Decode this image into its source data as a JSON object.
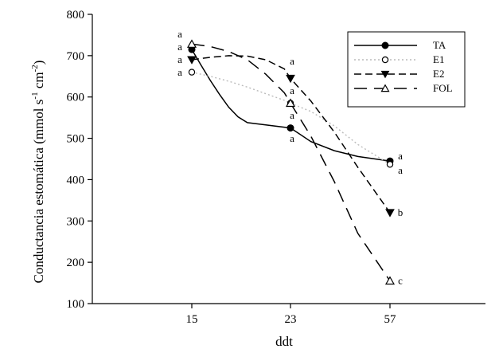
{
  "chart_data": {
    "type": "line",
    "categories": [
      "15",
      "23",
      "57"
    ],
    "xlabel": "ddt",
    "ylabel": "Conductancia estomática (mmol s",
    "ylabel_sup1": "-1",
    "ylabel_mid": " cm",
    "ylabel_sup2": "-2",
    "ylabel_end": ")",
    "ylim": [
      100,
      800
    ],
    "yticks": [
      100,
      200,
      300,
      400,
      500,
      600,
      700,
      800
    ],
    "grid": false,
    "legend_position": "top-right",
    "series": [
      {
        "name": "TA",
        "values": [
          715,
          525,
          445
        ],
        "marker": "filled-circle",
        "line_style": "solid",
        "color": "#000000",
        "significance": [
          "a",
          "a",
          "a"
        ],
        "curve": [
          [
            15,
            715
          ],
          [
            15.75,
            677
          ],
          [
            16.5,
            640
          ],
          [
            17.25,
            606
          ],
          [
            18,
            575
          ],
          [
            18.75,
            552
          ],
          [
            19.5,
            538
          ],
          [
            23,
            525
          ],
          [
            30,
            492
          ],
          [
            38,
            470
          ],
          [
            46,
            456
          ],
          [
            57,
            445
          ]
        ]
      },
      {
        "name": "E1",
        "values": [
          660,
          585,
          437
        ],
        "marker": "open-circle",
        "line_style": "dotted",
        "color": "#bbbbbb",
        "significance": [
          "a",
          "a",
          "a"
        ],
        "curve": [
          [
            15,
            660
          ],
          [
            16.5,
            650
          ],
          [
            18,
            638
          ],
          [
            19.5,
            624
          ],
          [
            21,
            608
          ],
          [
            22.5,
            592
          ],
          [
            23,
            585
          ],
          [
            30,
            565
          ],
          [
            38,
            530
          ],
          [
            46,
            485
          ],
          [
            57,
            437
          ]
        ]
      },
      {
        "name": "E2",
        "values": [
          690,
          645,
          320
        ],
        "marker": "filled-triangle-down",
        "line_style": "dashed",
        "color": "#000000",
        "significance": [
          "a",
          "a",
          "b"
        ],
        "curve": [
          [
            15,
            690
          ],
          [
            16.5,
            696
          ],
          [
            18,
            700
          ],
          [
            19.5,
            699
          ],
          [
            21,
            690
          ],
          [
            22.5,
            668
          ],
          [
            23,
            645
          ],
          [
            30,
            590
          ],
          [
            38,
            515
          ],
          [
            46,
            430
          ],
          [
            57,
            320
          ]
        ]
      },
      {
        "name": "FOL",
        "values": [
          728,
          585,
          155
        ],
        "marker": "open-triangle-up",
        "line_style": "long-dashed",
        "color": "#000000",
        "significance": [
          "a",
          "a",
          "c"
        ],
        "curve": [
          [
            15,
            728
          ],
          [
            16.5,
            722
          ],
          [
            18,
            710
          ],
          [
            19.5,
            690
          ],
          [
            21,
            655
          ],
          [
            22.5,
            610
          ],
          [
            23,
            585
          ],
          [
            30,
            505
          ],
          [
            38,
            395
          ],
          [
            46,
            270
          ],
          [
            57,
            155
          ]
        ]
      }
    ]
  }
}
